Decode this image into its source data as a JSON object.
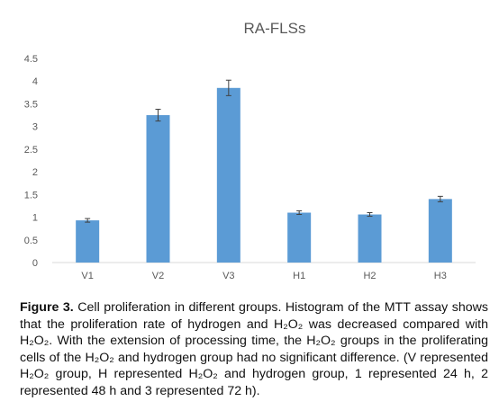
{
  "chart_data": {
    "type": "bar",
    "title": "RA-FLSs",
    "categories": [
      "V1",
      "V2",
      "V3",
      "H1",
      "H2",
      "H3"
    ],
    "values": [
      0.93,
      3.25,
      3.85,
      1.1,
      1.06,
      1.4
    ],
    "errors": [
      0.04,
      0.13,
      0.17,
      0.04,
      0.04,
      0.06
    ],
    "ylim": [
      0,
      4.5
    ],
    "yticks": [
      "0",
      "0.5",
      "1",
      "1.5",
      "2",
      "2.5",
      "3",
      "3.5",
      "4",
      "4.5"
    ],
    "grid": false,
    "legend": "none",
    "bar_color": "#5b9bd5",
    "axis_color": "#d9d9d9",
    "error_color": "#404040"
  },
  "caption": {
    "label": "Figure 3.",
    "text": "Cell proliferation in different groups. Histogram of the MTT assay shows that the proliferation rate of hydrogen and H₂O₂ was decreased compared with H₂O₂. With the extension of processing time, the H₂O₂ groups in the proliferating cells of the H₂O₂ and hydrogen group had no significant difference. (V represented H₂O₂ group, H represented H₂O₂ and hydrogen group, 1 represented 24 h, 2 represented 48 h and 3 represented 72 h)."
  }
}
